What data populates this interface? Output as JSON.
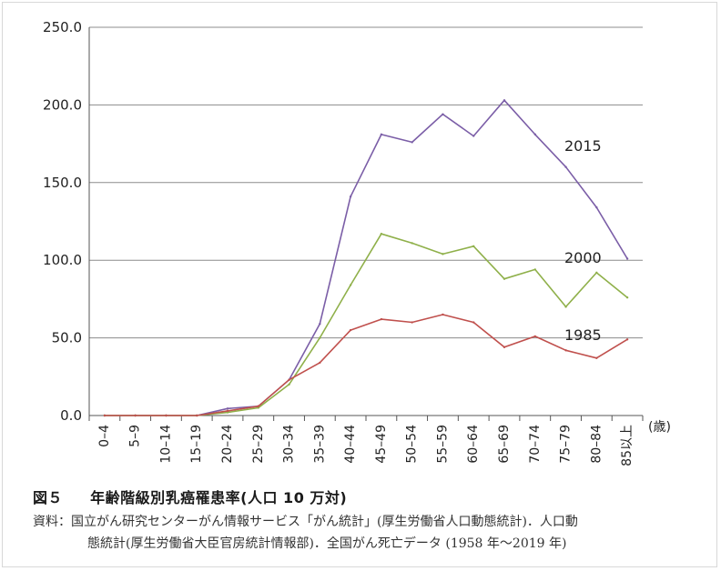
{
  "chart_data": {
    "type": "line",
    "categories": [
      "0–4",
      "5–9",
      "10–14",
      "15–19",
      "20–24",
      "25–29",
      "30–34",
      "35–39",
      "40–44",
      "45–49",
      "50–54",
      "55–59",
      "60–64",
      "65–69",
      "70–74",
      "75–79",
      "80–84",
      "85以上"
    ],
    "series": [
      {
        "name": "2015",
        "color": "#7b5ea7",
        "values": [
          0,
          0,
          0,
          0,
          4.5,
          6,
          23,
          59,
          141,
          181,
          176,
          194,
          180,
          203,
          181,
          160,
          134,
          101
        ]
      },
      {
        "name": "2000",
        "color": "#8fb04a",
        "values": [
          0,
          0,
          0,
          0,
          2,
          5,
          20,
          50,
          84,
          117,
          111,
          104,
          109,
          88,
          94,
          70,
          92,
          76
        ]
      },
      {
        "name": "1985",
        "color": "#c0504d",
        "values": [
          0,
          0,
          0,
          0,
          3,
          6,
          23,
          34,
          55,
          62,
          60,
          65,
          60,
          44,
          51,
          42,
          37,
          49
        ]
      }
    ],
    "y_ticks": [
      "0.0",
      "50.0",
      "100.0",
      "150.0",
      "200.0",
      "250.0"
    ],
    "ylim": [
      0,
      250
    ],
    "x_unit": "(歳)",
    "grid": true
  },
  "caption": {
    "label": "図５",
    "title": "年齢階級別乳癌罹患率(人口 10 万対)"
  },
  "source": {
    "line1": "資料：国立がん研究センターがん情報サービス「がん統計」(厚生労働省人口動態統計)．人口動",
    "line2": "態統計(厚生労働省大臣官房統計情報部)．全国がん死亡データ (1958 年～2019 年)"
  }
}
